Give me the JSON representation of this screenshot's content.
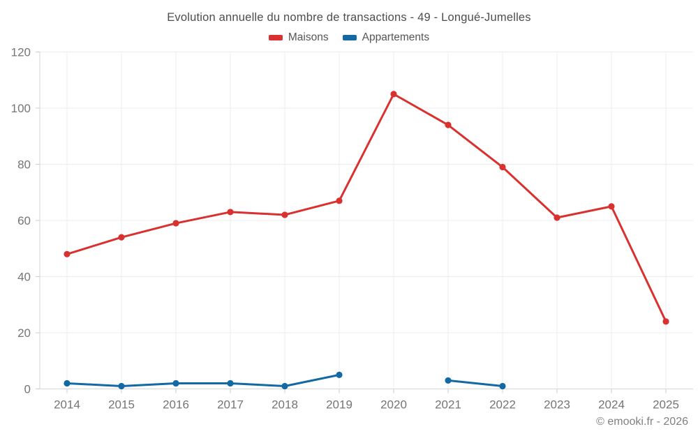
{
  "chart_data": {
    "type": "line",
    "title": "Evolution annuelle du nombre de transactions - 49 - Longué-Jumelles",
    "categories": [
      "2014",
      "2015",
      "2016",
      "2017",
      "2018",
      "2019",
      "2020",
      "2021",
      "2022",
      "2023",
      "2024",
      "2025"
    ],
    "series": [
      {
        "name": "Maisons",
        "color": "#d8312f",
        "values": [
          48,
          54,
          59,
          63,
          62,
          67,
          105,
          94,
          79,
          61,
          65,
          24
        ]
      },
      {
        "name": "Appartements",
        "color": "#1369a3",
        "values": [
          2,
          1,
          2,
          2,
          1,
          5,
          null,
          3,
          1,
          null,
          null,
          null
        ]
      }
    ],
    "ylim": [
      0,
      120
    ],
    "ytick_step": 20,
    "yticks": [
      0,
      20,
      40,
      60,
      80,
      100,
      120
    ],
    "grid": true,
    "legend_position": "top"
  },
  "footer": {
    "copyright": "© emooki.fr - 2026"
  },
  "colors": {
    "background": "#ffffff",
    "grid": "#ececec",
    "axis": "#d6d6d6",
    "tick": "#cccccc",
    "tick_label": "#757575",
    "title": "#4d4d4d",
    "legend_text": "#555555",
    "copyright": "#808080"
  }
}
